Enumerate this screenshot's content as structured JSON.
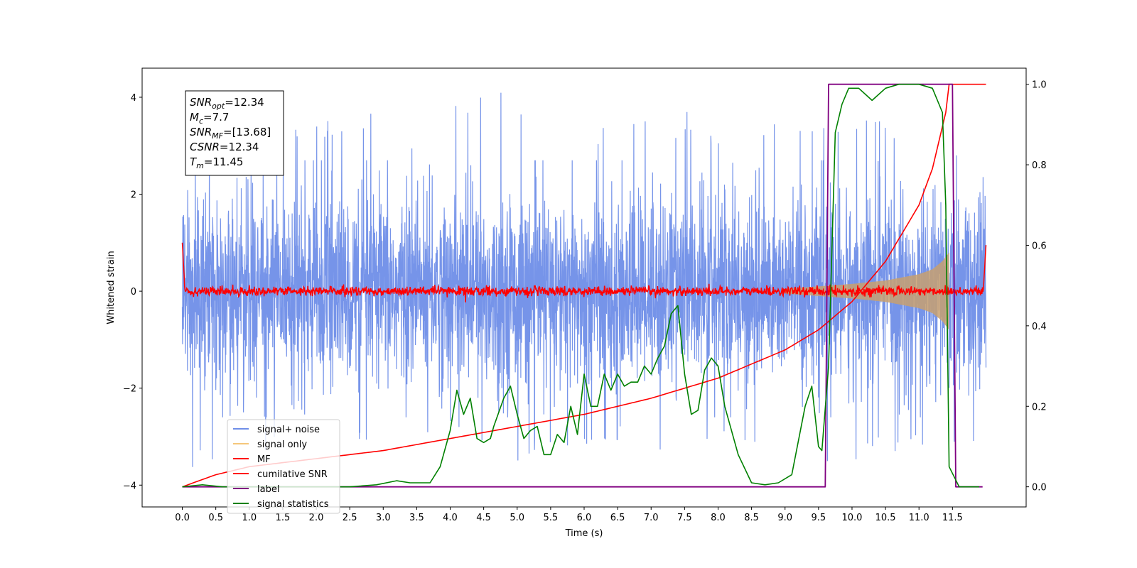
{
  "chart_data": {
    "type": "line",
    "xlabel": "Time (s)",
    "ylabel": "Whitened strain",
    "xlim": [
      -0.6,
      12.6
    ],
    "ylim": [
      -4.45,
      4.6
    ],
    "y2lim": [
      -0.05,
      1.04
    ],
    "xticks": [
      0.0,
      0.5,
      1.0,
      1.5,
      2.0,
      2.5,
      3.0,
      3.5,
      4.0,
      4.5,
      5.0,
      5.5,
      6.0,
      6.5,
      7.0,
      7.5,
      8.0,
      8.5,
      9.0,
      9.5,
      10.0,
      10.5,
      11.0,
      11.5
    ],
    "xtick_labels": [
      "0.0",
      "0.5",
      "1.0",
      "1.5",
      "2.0",
      "2.5",
      "3.0",
      "3.5",
      "4.0",
      "4.5",
      "5.0",
      "5.5",
      "6.0",
      "6.5",
      "7.0",
      "7.5",
      "8.0",
      "8.5",
      "9.0",
      "9.5",
      "10.0",
      "10.5",
      "11.0",
      "11.5"
    ],
    "yticks": [
      -4,
      -2,
      0,
      2,
      4
    ],
    "ytick_labels": [
      "−4",
      "−2",
      "0",
      "2",
      "4"
    ],
    "y2ticks": [
      0.0,
      0.2,
      0.4,
      0.6,
      0.8,
      1.0
    ],
    "y2tick_labels": [
      "0.0",
      "0.2",
      "0.4",
      "0.6",
      "0.8",
      "1.0"
    ],
    "grid": false,
    "legend_position": "lower-left",
    "legend": [
      {
        "label": "signal+ noise",
        "color": "#6f8ee8"
      },
      {
        "label": "signal only",
        "color": "#f5c77a"
      },
      {
        "label": "MF",
        "color": "#ff0000"
      },
      {
        "label": "cumilative SNR",
        "color": "#ff0000"
      },
      {
        "label": "label",
        "color": "#800080"
      },
      {
        "label": "signal statistics",
        "color": "#008000"
      }
    ],
    "annotation": [
      {
        "sym": "SNR",
        "sub": "opt",
        "rest": "=12.34"
      },
      {
        "sym": "M",
        "sub": "c",
        "rest": "=7.7"
      },
      {
        "sym": "SNR",
        "sub": "MF",
        "rest": "=[13.68]"
      },
      {
        "sym": "CSNR",
        "sub": "",
        "rest": "=12.34"
      },
      {
        "sym": "T",
        "sub": "m",
        "rest": "=11.45"
      }
    ],
    "series": [
      {
        "name": "signal+ noise",
        "axis": "left",
        "color": "#6f8ee8",
        "kind": "noise-band",
        "x_range": [
          0.0,
          12.0
        ],
        "band": [
          -2.6,
          2.7
        ],
        "spike_max": [
          3.4,
          2.6,
          3.0,
          3.4,
          3.6,
          3.8,
          3.2,
          3.3,
          3.9,
          4.1,
          3.7,
          3.6,
          3.5,
          3.6,
          3.8,
          3.7,
          3.4,
          4.15,
          3.6,
          3.5,
          3.4,
          3.6,
          3.7,
          3.8,
          3.1
        ],
        "spike_min": [
          -3.8,
          -3.0,
          -3.3,
          -3.5,
          -3.2,
          -3.4,
          -3.3,
          -3.0,
          -3.1,
          -3.2,
          -3.5,
          -3.4,
          -3.2,
          -3.1,
          -3.7,
          -3.6,
          -3.2,
          -3.3,
          -3.6,
          -3.5,
          -4.05,
          -3.4,
          -3.3,
          -3.2,
          -3.3
        ]
      },
      {
        "name": "signal only",
        "axis": "left",
        "color": "#c8a070",
        "kind": "chirp-envelope",
        "x": [
          9.0,
          9.5,
          10.0,
          10.5,
          11.0,
          11.2,
          11.35,
          11.45
        ],
        "amplitude": [
          0.05,
          0.1,
          0.15,
          0.22,
          0.35,
          0.45,
          0.62,
          0.8
        ]
      },
      {
        "name": "MF",
        "axis": "left",
        "color": "#ff0000",
        "kind": "noise-around-zero",
        "x_range": [
          0.0,
          12.0
        ],
        "start_value": 1.0,
        "end_value": 0.95,
        "noise": 0.08
      },
      {
        "name": "cumilative SNR",
        "axis": "right",
        "color": "#ff0000",
        "x": [
          0.0,
          0.5,
          1.0,
          2.0,
          3.0,
          4.0,
          5.0,
          6.0,
          7.0,
          8.0,
          9.0,
          9.5,
          10.0,
          10.5,
          11.0,
          11.2,
          11.4,
          11.45,
          12.0
        ],
        "y": [
          0.0,
          0.03,
          0.05,
          0.07,
          0.09,
          0.12,
          0.15,
          0.18,
          0.22,
          0.27,
          0.34,
          0.39,
          0.46,
          0.56,
          0.7,
          0.79,
          0.93,
          1.0,
          1.0
        ]
      },
      {
        "name": "label",
        "axis": "right",
        "color": "#800080",
        "x": [
          0.0,
          9.6,
          9.65,
          11.5,
          11.55,
          11.95
        ],
        "y": [
          0.0,
          0.0,
          1.0,
          1.0,
          0.0,
          0.0
        ]
      },
      {
        "name": "signal statistics",
        "axis": "right",
        "color": "#008000",
        "x": [
          0.0,
          0.3,
          0.6,
          1.0,
          1.5,
          2.0,
          2.5,
          2.9,
          3.2,
          3.4,
          3.7,
          3.85,
          4.0,
          4.1,
          4.2,
          4.3,
          4.4,
          4.5,
          4.6,
          4.65,
          4.8,
          4.9,
          5.0,
          5.1,
          5.2,
          5.3,
          5.4,
          5.5,
          5.6,
          5.7,
          5.8,
          5.9,
          6.0,
          6.1,
          6.2,
          6.3,
          6.4,
          6.5,
          6.6,
          6.7,
          6.8,
          6.9,
          7.0,
          7.1,
          7.2,
          7.3,
          7.4,
          7.5,
          7.6,
          7.7,
          7.8,
          7.9,
          8.0,
          8.1,
          8.3,
          8.5,
          8.7,
          8.9,
          9.1,
          9.3,
          9.4,
          9.5,
          9.55,
          9.65,
          9.75,
          9.85,
          9.95,
          10.1,
          10.3,
          10.5,
          10.7,
          11.0,
          11.2,
          11.3,
          11.35,
          11.4,
          11.45,
          11.6,
          11.9
        ],
        "y": [
          0.0,
          0.005,
          0.0,
          0.0,
          0.0,
          0.0,
          0.0,
          0.005,
          0.015,
          0.01,
          0.01,
          0.05,
          0.14,
          0.24,
          0.18,
          0.22,
          0.12,
          0.11,
          0.12,
          0.15,
          0.22,
          0.25,
          0.18,
          0.12,
          0.14,
          0.15,
          0.08,
          0.08,
          0.13,
          0.11,
          0.2,
          0.13,
          0.28,
          0.2,
          0.2,
          0.28,
          0.24,
          0.28,
          0.25,
          0.26,
          0.26,
          0.3,
          0.28,
          0.32,
          0.35,
          0.43,
          0.45,
          0.28,
          0.18,
          0.19,
          0.29,
          0.32,
          0.3,
          0.2,
          0.08,
          0.01,
          0.005,
          0.01,
          0.03,
          0.2,
          0.25,
          0.1,
          0.09,
          0.3,
          0.88,
          0.95,
          0.99,
          0.99,
          0.96,
          0.99,
          1.0,
          1.0,
          0.99,
          0.95,
          0.93,
          0.7,
          0.05,
          0.0,
          0.0
        ]
      }
    ]
  }
}
